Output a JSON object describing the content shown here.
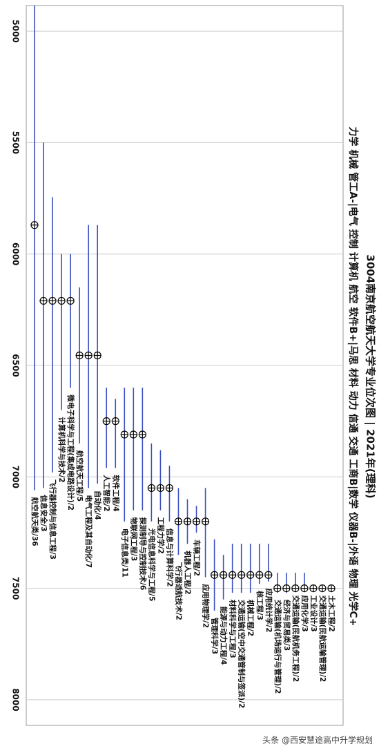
{
  "chart_data": {
    "type": "rangedot",
    "title": "3004南京航空航天大学专业位次图 | 2021年(理科)",
    "subtitle": "力学 机械 管工A-|电气 控制 计算机 航空 软件B+|马思 材料 动力 信通 交通 工商B|数学 仪器B-|外语 物理 光学C+",
    "watermark": "头条 @西安慧途高中升学规划",
    "categories": [
      "航空航天类/36",
      "信息安全/3",
      "飞行器控制与信息工程/3",
      "计算机科学与技术/2",
      "微电子科学与工程(集成电路设计)/2",
      "航空航天工程/5",
      "电气工程及其自动化/7",
      "自动化/4",
      "人工智能/2",
      "软件工程/4",
      "电子信息类/11",
      "物联网工程/3",
      "探测制导与控制技术/6",
      "光电信息科学与工程/5",
      "工程力学/2",
      "信息与计算科学/2",
      "飞行器适航技术/2",
      "机器人工程/2",
      "车辆工程/2",
      "应用物理学/2",
      "管理科学/3",
      "能源与动力工程/4",
      "材料科学与工程/3",
      "交通运输(空中交通管制与签派)/2",
      "机械工程/2",
      "核工程/3",
      "应用统计学/2",
      "交通运输(机场运行与管理)/2",
      "经济与贸易类/3",
      "交通运输(民航机务工程)/2",
      "应用化学/3",
      "工业设计/3",
      "交通运输(民航运输管理)/2",
      "土木工程/2"
    ],
    "values": [
      5870,
      6210,
      6210,
      6210,
      6210,
      6455,
      6455,
      6455,
      6750,
      6750,
      6810,
      6810,
      6810,
      7050,
      7050,
      7050,
      7200,
      7200,
      7200,
      7200,
      7440,
      7440,
      7440,
      7440,
      7440,
      7440,
      7440,
      7500,
      7500,
      7500,
      7500,
      7500,
      7500,
      7500
    ],
    "lows": [
      4885,
      5500,
      5745,
      6000,
      6000,
      6150,
      5870,
      5870,
      6600,
      6650,
      6600,
      6600,
      6600,
      6850,
      6880,
      6950,
      7050,
      7100,
      7130,
      7050,
      7280,
      7350,
      7300,
      7300,
      7300,
      7300,
      7300,
      7430,
      7430,
      7430,
      7430,
      null,
      null,
      null
    ],
    "highs": [
      7060,
      7050,
      6980,
      6700,
      6600,
      6850,
      7050,
      7030,
      6960,
      6960,
      7200,
      7150,
      7150,
      7200,
      7150,
      7200,
      7350,
      7300,
      7250,
      7450,
      7600,
      7550,
      7520,
      7520,
      7520,
      7480,
      7470,
      7520,
      7520,
      7500,
      7500,
      null,
      null,
      null
    ],
    "color": "#3a4fc0",
    "ylim": [
      4885,
      8115
    ],
    "yticks": [
      5000,
      5500,
      6000,
      6500,
      7000,
      7500,
      8000
    ],
    "grid": true
  }
}
